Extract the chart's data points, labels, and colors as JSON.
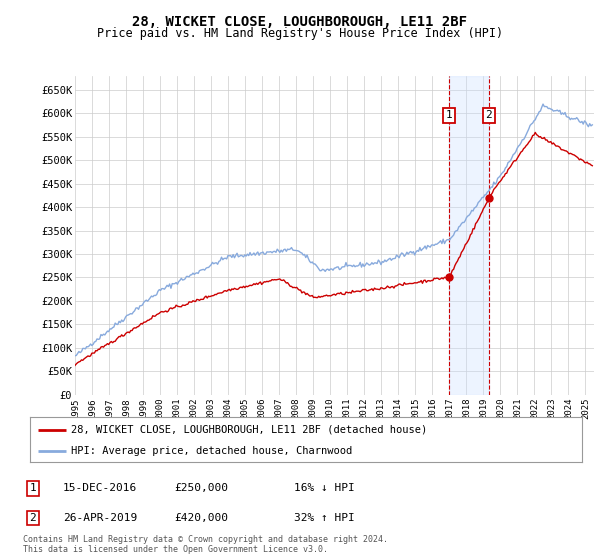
{
  "title": "28, WICKET CLOSE, LOUGHBOROUGH, LE11 2BF",
  "subtitle": "Price paid vs. HM Land Registry's House Price Index (HPI)",
  "ylim": [
    0,
    680000
  ],
  "yticks": [
    0,
    50000,
    100000,
    150000,
    200000,
    250000,
    300000,
    350000,
    400000,
    450000,
    500000,
    550000,
    600000,
    650000
  ],
  "ytick_labels": [
    "£0",
    "£50K",
    "£100K",
    "£150K",
    "£200K",
    "£250K",
    "£300K",
    "£350K",
    "£400K",
    "£450K",
    "£500K",
    "£550K",
    "£600K",
    "£650K"
  ],
  "xlim_start": 1995.0,
  "xlim_end": 2025.5,
  "transaction1_date": 2016.96,
  "transaction1_price": 250000,
  "transaction1_label": "1",
  "transaction2_date": 2019.32,
  "transaction2_price": 420000,
  "transaction2_label": "2",
  "legend_entry1": "28, WICKET CLOSE, LOUGHBOROUGH, LE11 2BF (detached house)",
  "legend_entry2": "HPI: Average price, detached house, Charnwood",
  "annot1_date": "15-DEC-2016",
  "annot1_price": "£250,000",
  "annot1_hpi": "16% ↓ HPI",
  "annot2_date": "26-APR-2019",
  "annot2_price": "£420,000",
  "annot2_hpi": "32% ↑ HPI",
  "copyright_text": "Contains HM Land Registry data © Crown copyright and database right 2024.\nThis data is licensed under the Open Government Licence v3.0.",
  "red_color": "#cc0000",
  "blue_color": "#88aadd",
  "bg_color": "#ffffff",
  "grid_color": "#cccccc",
  "shade_color": "#cce0ff"
}
